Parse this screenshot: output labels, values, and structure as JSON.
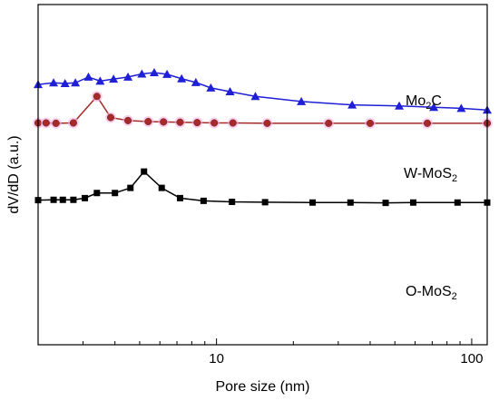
{
  "chart_data": {
    "type": "line",
    "xscale": "log",
    "xlim": [
      2,
      115
    ],
    "xticks": [
      10,
      100
    ],
    "xtick_labels": [
      "10",
      "100"
    ],
    "xlabel": "Pore size (nm)",
    "ylabel": "dV/dD (a.u.)",
    "yticks": "none",
    "grid": false,
    "legend": "none",
    "series": [
      {
        "name": "Mo2C",
        "label_main": "Mo",
        "label_sub": "2",
        "label_tail": "C",
        "color": "#1f1fd6",
        "marker": "triangle",
        "x": [
          2.0,
          2.3,
          2.55,
          2.8,
          3.15,
          3.5,
          3.95,
          4.5,
          5.1,
          5.7,
          6.4,
          7.3,
          8.3,
          9.5,
          11.3,
          14.2,
          21.5,
          34,
          52,
          71,
          91,
          115
        ],
        "y": [
          0.765,
          0.77,
          0.768,
          0.77,
          0.787,
          0.775,
          0.781,
          0.787,
          0.796,
          0.8,
          0.795,
          0.782,
          0.771,
          0.755,
          0.744,
          0.73,
          0.715,
          0.705,
          0.702,
          0.698,
          0.695,
          0.69
        ]
      },
      {
        "name": "W-MoS2",
        "label_main": "W-MoS",
        "label_sub": "2",
        "label_tail": "",
        "color": "#a52a2a",
        "marker": "circle",
        "x": [
          2.0,
          2.15,
          2.35,
          2.75,
          3.4,
          3.85,
          4.5,
          5.4,
          6.2,
          7.2,
          8.4,
          9.8,
          11.6,
          15.8,
          27.5,
          40,
          67,
          115
        ],
        "y": [
          0.652,
          0.652,
          0.651,
          0.652,
          0.73,
          0.668,
          0.659,
          0.656,
          0.655,
          0.654,
          0.653,
          0.652,
          0.652,
          0.651,
          0.651,
          0.651,
          0.651,
          0.651
        ]
      },
      {
        "name": "O-MoS2",
        "label_main": "O-MoS",
        "label_sub": "2",
        "label_tail": "",
        "color": "#000000",
        "marker": "square",
        "x": [
          2.0,
          2.3,
          2.5,
          2.75,
          3.05,
          3.4,
          4.0,
          4.6,
          5.2,
          6.1,
          7.2,
          8.9,
          11.5,
          15.5,
          23.8,
          33.5,
          46,
          59,
          88,
          115
        ],
        "y": [
          0.425,
          0.426,
          0.426,
          0.426,
          0.431,
          0.446,
          0.446,
          0.461,
          0.509,
          0.461,
          0.431,
          0.423,
          0.42,
          0.419,
          0.418,
          0.418,
          0.417,
          0.418,
          0.418,
          0.418
        ]
      }
    ]
  }
}
